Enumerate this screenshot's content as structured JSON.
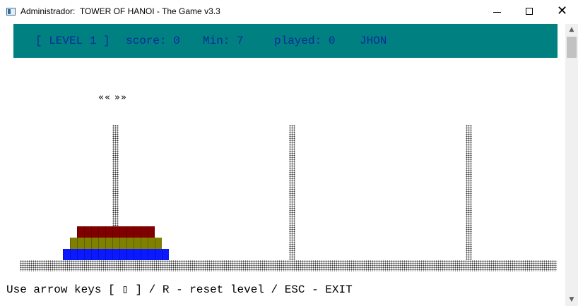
{
  "window": {
    "title": "Administrador:  TOWER OF HANOI - The Game v3.3",
    "minimize_glyph": "",
    "close_glyph": "✕"
  },
  "stats": {
    "level": "[ LEVEL 1 ]",
    "score": "score: 0",
    "min": "Min: 7",
    "played": "played: 0",
    "player": "JHON"
  },
  "cursor": {
    "glyph": "«« »»",
    "rod": 1
  },
  "towers": [
    {
      "disks": [
        {
          "size": 3,
          "color": "#0a19ff"
        },
        {
          "size": 2,
          "color": "#808000"
        },
        {
          "size": 1,
          "color": "#800000"
        }
      ]
    },
    {
      "disks": []
    },
    {
      "disks": []
    }
  ],
  "help_text": "Use arrow keys [ ▯ ] / R - reset level / ESC - EXIT",
  "scrollbar": {
    "up_glyph": "▲",
    "down_glyph": "▼"
  }
}
